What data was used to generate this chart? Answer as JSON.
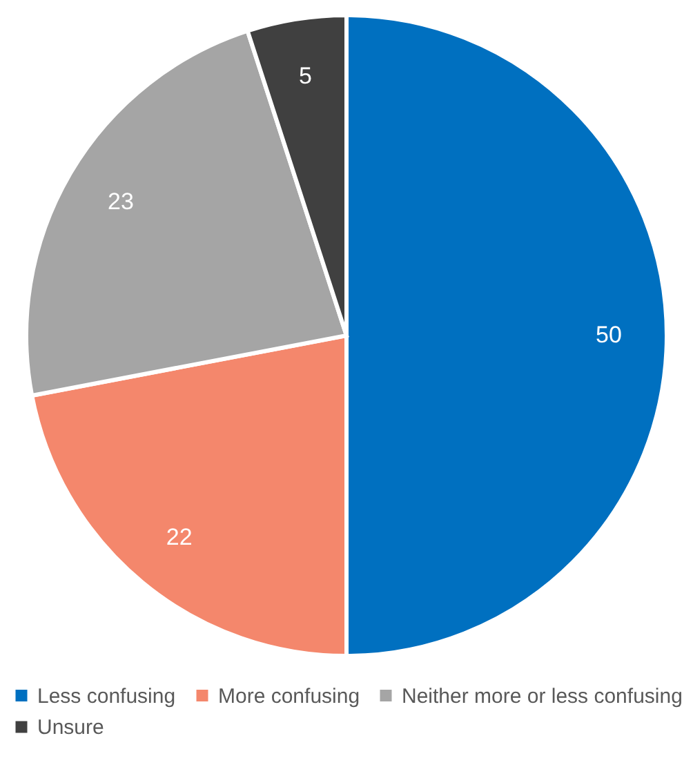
{
  "chart_data": {
    "type": "pie",
    "categories": [
      "Less confusing",
      "More confusing",
      "Neither more or less confusing",
      "Unsure"
    ],
    "values": [
      50,
      22,
      23,
      5
    ],
    "colors": [
      "#0070c0",
      "#f4876c",
      "#a5a5a5",
      "#404040"
    ],
    "data_labels": true,
    "legend": "bottom"
  }
}
